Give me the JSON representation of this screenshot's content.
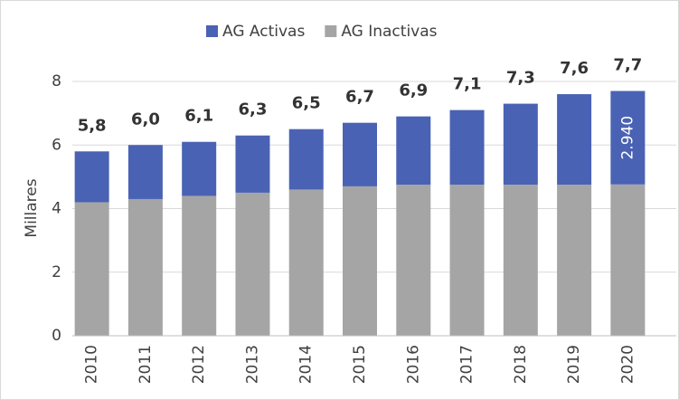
{
  "chart_data": {
    "type": "stacked_bar",
    "categories": [
      "2010",
      "2011",
      "2012",
      "2013",
      "2014",
      "2015",
      "2016",
      "2017",
      "2018",
      "2019",
      "2020"
    ],
    "series": [
      {
        "name": "AG Inactivas",
        "color": "#a5a5a5",
        "values": [
          4.2,
          4.3,
          4.4,
          4.5,
          4.6,
          4.7,
          4.75,
          4.75,
          4.75,
          4.75,
          4.76
        ]
      },
      {
        "name": "AG Activas",
        "color": "#4a62b4",
        "values": [
          1.6,
          1.7,
          1.7,
          1.8,
          1.9,
          2.0,
          2.15,
          2.35,
          2.55,
          2.85,
          2.94
        ],
        "value_labels": [
          null,
          null,
          null,
          null,
          null,
          null,
          null,
          null,
          null,
          null,
          "2.940"
        ]
      }
    ],
    "totals": [
      5.8,
      6.0,
      6.1,
      6.3,
      6.5,
      6.7,
      6.9,
      7.1,
      7.3,
      7.6,
      7.7
    ],
    "total_labels": [
      "5,8",
      "6,0",
      "6,1",
      "6,3",
      "6,5",
      "6,7",
      "6,9",
      "7,1",
      "7,3",
      "7,6",
      "7,7"
    ],
    "y_label": "Millares",
    "ylim": [
      0,
      8
    ],
    "yticks": [
      0,
      2,
      4,
      6,
      8
    ],
    "grid": true,
    "legend": "top"
  }
}
